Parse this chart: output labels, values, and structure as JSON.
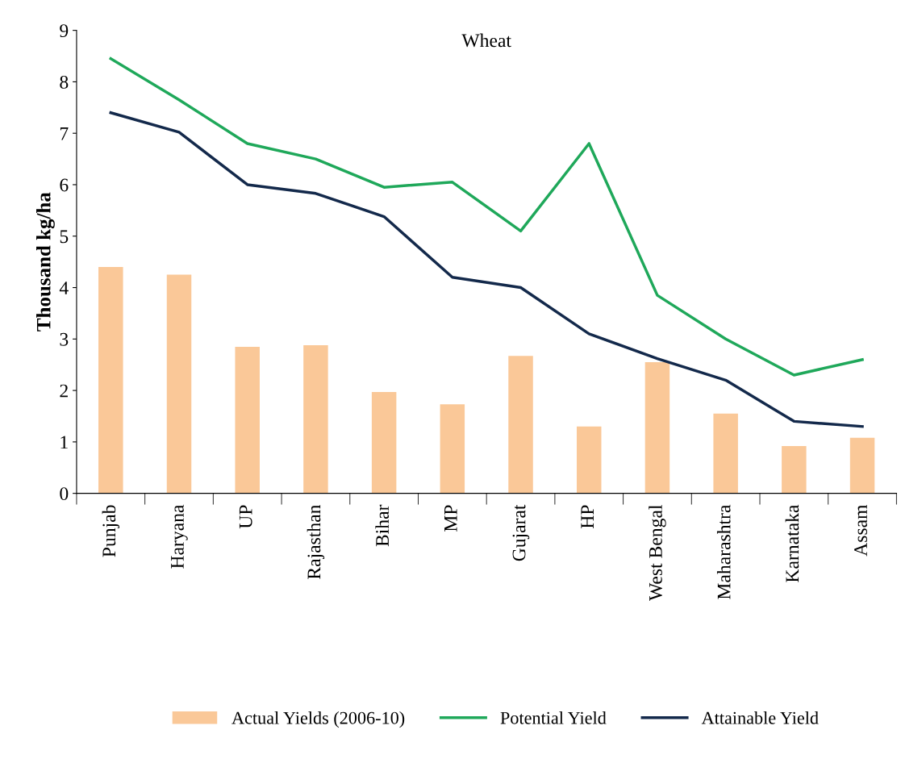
{
  "chart_data": {
    "type": "bar",
    "title": "Wheat",
    "ylabel": "Thousand kg/ha",
    "categories": [
      "Punjab",
      "Haryana",
      "UP",
      "Rajasthan",
      "Bihar",
      "MP",
      "Gujarat",
      "HP",
      "West Bengal",
      "Maharashtra",
      "Karnataka",
      "Assam"
    ],
    "series": [
      {
        "name": "Actual Yields (2006-10)",
        "color": "#fac898",
        "values": [
          4.4,
          4.25,
          2.85,
          2.88,
          1.97,
          1.73,
          2.67,
          1.3,
          2.55,
          1.55,
          0.92,
          1.08
        ]
      },
      {
        "name": "Potential Yield",
        "type": "line",
        "color": "#1fa85a",
        "values": [
          8.45,
          7.65,
          6.8,
          6.5,
          5.95,
          6.05,
          5.1,
          6.8,
          3.85,
          3.0,
          2.3,
          2.6
        ]
      },
      {
        "name": "Attainable Yield",
        "type": "line",
        "color": "#13294b",
        "values": [
          7.4,
          7.02,
          6.0,
          5.83,
          5.38,
          4.2,
          4.0,
          3.1,
          2.62,
          2.2,
          1.4,
          1.3
        ]
      }
    ],
    "ylim": [
      0,
      9
    ],
    "yticks": [
      0,
      1,
      2,
      3,
      4,
      5,
      6,
      7,
      8,
      9
    ],
    "grid": false,
    "legend": "bottom",
    "marker": "none",
    "line_style": "solid"
  }
}
